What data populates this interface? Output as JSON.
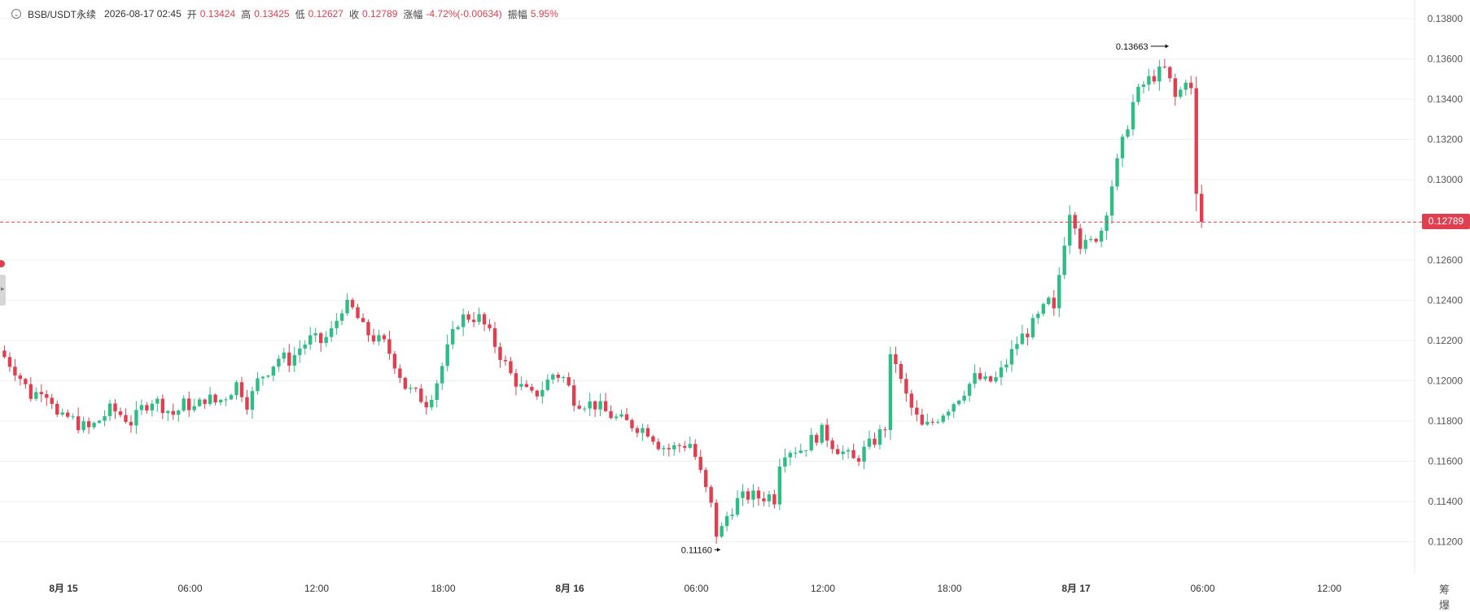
{
  "header": {
    "symbol": "BSB/USDT永续",
    "datetime": "2026-08-17 02:45",
    "open_label": "开",
    "open": "0.13424",
    "high_label": "高",
    "high": "0.13425",
    "low_label": "低",
    "low": "0.12627",
    "close_label": "收",
    "close": "0.12789",
    "change_label": "涨幅",
    "change": "-4.72%(-0.00634)",
    "amplitude_label": "振幅",
    "amplitude": "5.95%"
  },
  "corner": {
    "text": "筹 爆"
  },
  "colors": {
    "up": "#2ebd85",
    "down": "#e03f4f",
    "grid": "#f0f0f0",
    "axis_text": "#555555"
  },
  "chart_data": {
    "type": "candlestick",
    "ylim": [
      0.111,
      0.1385
    ],
    "yticks": [
      0.112,
      0.114,
      0.116,
      0.118,
      0.12,
      0.122,
      0.124,
      0.126,
      0.128,
      0.13,
      0.132,
      0.134,
      0.136,
      0.138
    ],
    "ytick_labels": [
      "0.11200",
      "0.11400",
      "0.11600",
      "0.11800",
      "0.12000",
      "0.12200",
      "0.12400",
      "0.12600",
      "0.12800",
      "0.13000",
      "0.13200",
      "0.13400",
      "0.13600",
      "0.13800"
    ],
    "xticks": [
      0,
      24,
      48,
      72,
      96,
      120,
      144,
      168,
      192,
      216,
      240
    ],
    "xtick_labels": [
      "8月 15",
      "06:00",
      "12:00",
      "18:00",
      "8月 16",
      "06:00",
      "12:00",
      "18:00",
      "8月 17",
      "06:00",
      "12:00"
    ],
    "xlim": [
      -11.2,
      267
    ],
    "candle_interval_hours": 0.25,
    "last_price": 0.12789,
    "last_price_label": "0.12789",
    "max_marker": {
      "index": 210,
      "value": 0.13663,
      "label": "0.13663"
    },
    "min_marker": {
      "index": 125,
      "value": 0.1116,
      "label": "0.11160"
    },
    "anchors": [
      [
        -11.2,
        0.1215
      ],
      [
        -8,
        0.1205
      ],
      [
        -5,
        0.1192
      ],
      [
        -3,
        0.1197
      ],
      [
        -1,
        0.119
      ],
      [
        0,
        0.118
      ],
      [
        2,
        0.1182
      ],
      [
        4,
        0.1178
      ],
      [
        6,
        0.1176
      ],
      [
        8,
        0.1181
      ],
      [
        10,
        0.1186
      ],
      [
        12,
        0.1183
      ],
      [
        14,
        0.1179
      ],
      [
        16,
        0.1187
      ],
      [
        18,
        0.1191
      ],
      [
        20,
        0.1187
      ],
      [
        22,
        0.1183
      ],
      [
        24,
        0.1189
      ],
      [
        26,
        0.1186
      ],
      [
        28,
        0.1192
      ],
      [
        30,
        0.1189
      ],
      [
        32,
        0.1193
      ],
      [
        34,
        0.1199
      ],
      [
        36,
        0.1188
      ],
      [
        38,
        0.1201
      ],
      [
        40,
        0.1206
      ],
      [
        42,
        0.1212
      ],
      [
        44,
        0.121
      ],
      [
        46,
        0.1217
      ],
      [
        48,
        0.1221
      ],
      [
        50,
        0.1219
      ],
      [
        52,
        0.1225
      ],
      [
        54,
        0.1238
      ],
      [
        56,
        0.1235
      ],
      [
        58,
        0.1225
      ],
      [
        60,
        0.1221
      ],
      [
        62,
        0.1218
      ],
      [
        64,
        0.1208
      ],
      [
        66,
        0.1196
      ],
      [
        68,
        0.1193
      ],
      [
        70,
        0.1189
      ],
      [
        72,
        0.1201
      ],
      [
        74,
        0.1217
      ],
      [
        76,
        0.1231
      ],
      [
        78,
        0.1232
      ],
      [
        80,
        0.1231
      ],
      [
        82,
        0.1222
      ],
      [
        84,
        0.1212
      ],
      [
        86,
        0.1202
      ],
      [
        88,
        0.1196
      ],
      [
        90,
        0.1192
      ],
      [
        92,
        0.1197
      ],
      [
        94,
        0.1204
      ],
      [
        96,
        0.1201
      ],
      [
        98,
        0.119
      ],
      [
        100,
        0.1189
      ],
      [
        102,
        0.1188
      ],
      [
        104,
        0.1184
      ],
      [
        106,
        0.1181
      ],
      [
        108,
        0.1179
      ],
      [
        110,
        0.1177
      ],
      [
        112,
        0.1175
      ],
      [
        114,
        0.1168
      ],
      [
        116,
        0.1166
      ],
      [
        118,
        0.1168
      ],
      [
        120,
        0.1169
      ],
      [
        122,
        0.1152
      ],
      [
        124,
        0.1136
      ],
      [
        125,
        0.1121
      ],
      [
        127,
        0.1134
      ],
      [
        129,
        0.1141
      ],
      [
        131,
        0.1143
      ],
      [
        133,
        0.1142
      ],
      [
        135,
        0.1143
      ],
      [
        136,
        0.1141
      ],
      [
        137,
        0.1165
      ],
      [
        139,
        0.1166
      ],
      [
        141,
        0.1166
      ],
      [
        143,
        0.1171
      ],
      [
        145,
        0.1175
      ],
      [
        147,
        0.1168
      ],
      [
        149,
        0.1164
      ],
      [
        151,
        0.116
      ],
      [
        153,
        0.1166
      ],
      [
        155,
        0.1171
      ],
      [
        157,
        0.1178
      ],
      [
        158,
        0.1218
      ],
      [
        160,
        0.1197
      ],
      [
        162,
        0.1185
      ],
      [
        164,
        0.1176
      ],
      [
        166,
        0.118
      ],
      [
        168,
        0.1185
      ],
      [
        170,
        0.119
      ],
      [
        172,
        0.1196
      ],
      [
        174,
        0.1202
      ],
      [
        176,
        0.1199
      ],
      [
        178,
        0.1201
      ],
      [
        180,
        0.121
      ],
      [
        182,
        0.122
      ],
      [
        184,
        0.1225
      ],
      [
        186,
        0.1232
      ],
      [
        188,
        0.124
      ],
      [
        189,
        0.1232
      ],
      [
        190,
        0.1258
      ],
      [
        192,
        0.1288
      ],
      [
        194,
        0.1266
      ],
      [
        196,
        0.1269
      ],
      [
        198,
        0.1276
      ],
      [
        200,
        0.13
      ],
      [
        202,
        0.132
      ],
      [
        204,
        0.134
      ],
      [
        206,
        0.1348
      ],
      [
        208,
        0.1352
      ],
      [
        210,
        0.1355
      ],
      [
        212,
        0.1339
      ],
      [
        214,
        0.1352
      ],
      [
        215,
        0.1342
      ],
      [
        216,
        0.1279
      ]
    ],
    "last_candle": {
      "index": 216,
      "open": 0.13424,
      "high": 0.13425,
      "low": 0.12627,
      "close": 0.12789
    }
  }
}
